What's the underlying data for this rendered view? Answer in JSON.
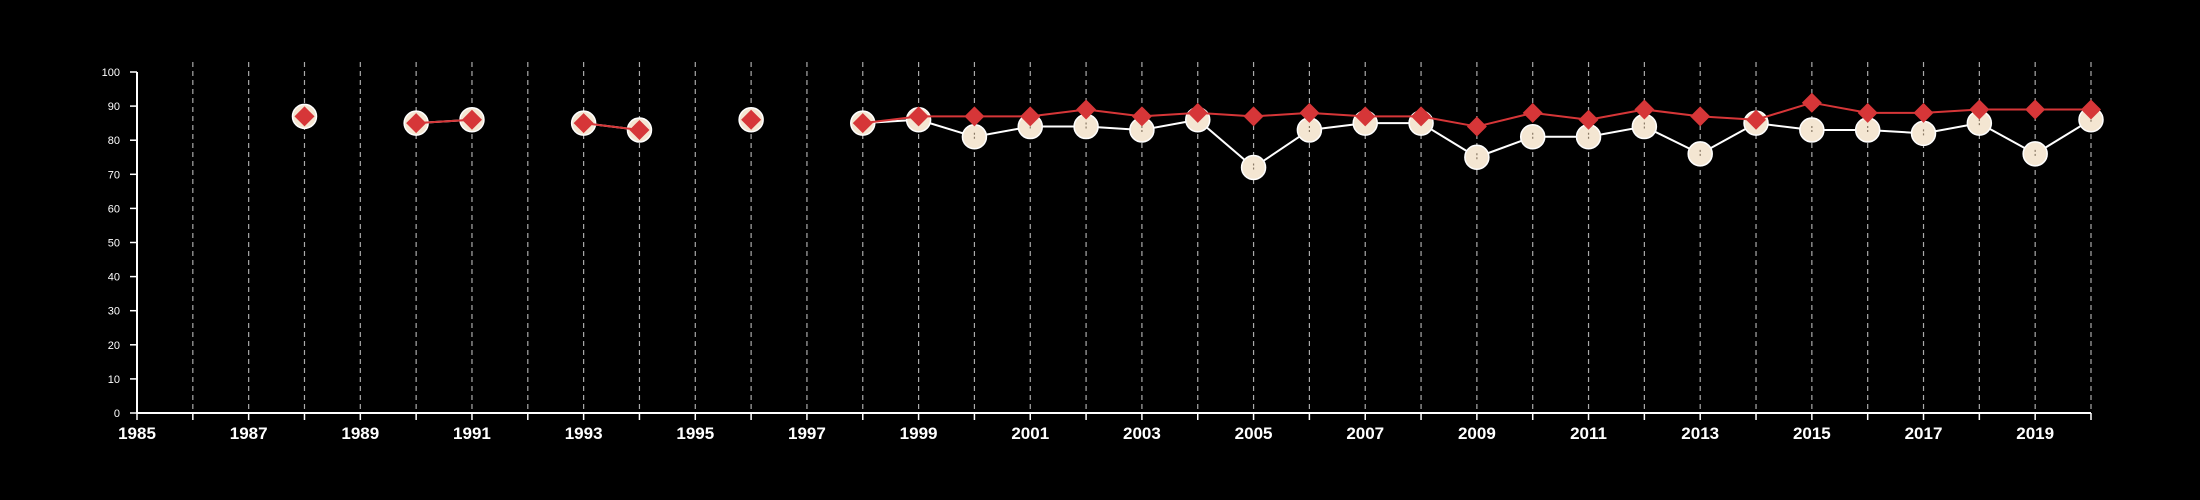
{
  "colors": {
    "background": "#000000",
    "axis": "#ffffff",
    "grid": "#aaaaaa",
    "series_a_marker": "#f4e6d2",
    "series_a_line": "#ffffff",
    "series_b_marker": "#d63638",
    "series_b_line": "#d63638"
  },
  "chart_data": {
    "type": "line",
    "title": "",
    "xlabel": "",
    "ylabel": "",
    "xlim": [
      1985,
      2020
    ],
    "ylim": [
      0,
      100
    ],
    "grid": {
      "vertical": true,
      "style": "dashed",
      "horizontal": false
    },
    "legend": "none",
    "x_ticks": [
      1985,
      1986,
      1987,
      1988,
      1989,
      1990,
      1991,
      1992,
      1993,
      1994,
      1995,
      1996,
      1997,
      1998,
      1999,
      2000,
      2001,
      2002,
      2003,
      2004,
      2005,
      2006,
      2007,
      2008,
      2009,
      2010,
      2011,
      2012,
      2013,
      2014,
      2015,
      2016,
      2017,
      2018,
      2019,
      2020
    ],
    "x_tick_labels": [
      "1985",
      "1987",
      "1989",
      "1991",
      "1993",
      "1995",
      "1997",
      "1999",
      "2001",
      "2003",
      "2005",
      "2007",
      "2009",
      "2011",
      "2013",
      "2015",
      "2017",
      "2019"
    ],
    "y_ticks": [
      0,
      10,
      20,
      30,
      40,
      50,
      60,
      70,
      80,
      90,
      100
    ],
    "y_tick_labels": [
      "0",
      "10",
      "20",
      "30",
      "40",
      "50",
      "60",
      "70",
      "80",
      "90",
      "100"
    ],
    "series": [
      {
        "marker": "circle",
        "segments": [
          [
            [
              1988,
              87
            ]
          ],
          [
            [
              1990,
              85
            ],
            [
              1991,
              86
            ]
          ],
          [
            [
              1993,
              85
            ],
            [
              1994,
              83
            ]
          ],
          [
            [
              1996,
              86
            ]
          ],
          [
            [
              1998,
              85
            ],
            [
              1999,
              86
            ],
            [
              2000,
              81
            ],
            [
              2001,
              84
            ],
            [
              2002,
              84
            ],
            [
              2003,
              83
            ],
            [
              2004,
              86
            ],
            [
              2005,
              72
            ],
            [
              2006,
              83
            ],
            [
              2007,
              85
            ],
            [
              2008,
              85
            ],
            [
              2009,
              75
            ],
            [
              2010,
              81
            ],
            [
              2011,
              81
            ],
            [
              2012,
              84
            ],
            [
              2013,
              76
            ],
            [
              2014,
              85
            ],
            [
              2015,
              83
            ],
            [
              2016,
              83
            ],
            [
              2017,
              82
            ],
            [
              2018,
              85
            ],
            [
              2019,
              76
            ],
            [
              2020,
              86
            ]
          ]
        ]
      },
      {
        "marker": "diamond",
        "segments": [
          [
            [
              1988,
              87
            ]
          ],
          [
            [
              1990,
              85
            ],
            [
              1991,
              86
            ]
          ],
          [
            [
              1993,
              85
            ],
            [
              1994,
              83
            ]
          ],
          [
            [
              1996,
              86
            ]
          ],
          [
            [
              1998,
              85
            ],
            [
              1999,
              87
            ],
            [
              2000,
              87
            ],
            [
              2001,
              87
            ],
            [
              2002,
              89
            ],
            [
              2003,
              87
            ],
            [
              2004,
              88
            ],
            [
              2005,
              87
            ],
            [
              2006,
              88
            ],
            [
              2007,
              87
            ],
            [
              2008,
              87
            ],
            [
              2009,
              84
            ],
            [
              2010,
              88
            ],
            [
              2011,
              86
            ],
            [
              2012,
              89
            ],
            [
              2013,
              87
            ],
            [
              2014,
              86
            ],
            [
              2015,
              91
            ],
            [
              2016,
              88
            ],
            [
              2017,
              88
            ],
            [
              2018,
              89
            ],
            [
              2019,
              89
            ],
            [
              2020,
              89
            ]
          ]
        ]
      }
    ]
  }
}
